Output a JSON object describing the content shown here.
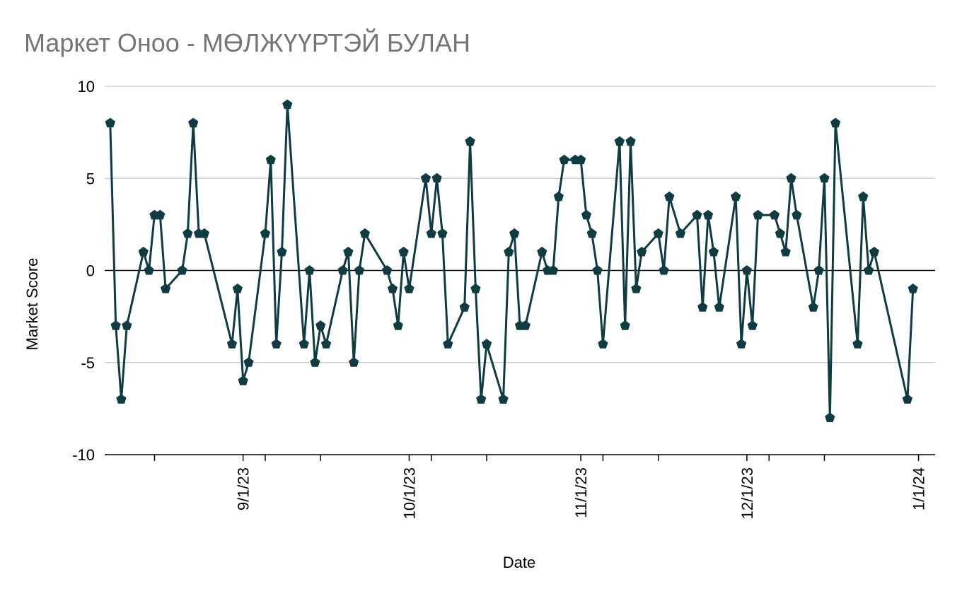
{
  "chart_data": {
    "type": "line",
    "title": "Маркет Оноо - МӨЛЖҮҮРТЭЙ БУЛАН",
    "xlabel": "Date",
    "ylabel": "Market Score",
    "ylim": [
      -10,
      10
    ],
    "yticks": [
      "10",
      "5",
      "0",
      "-5",
      "-10"
    ],
    "xlim": [
      "2023-08-07",
      "2024-01-04"
    ],
    "xticks": [
      {
        "label": "9/1/23",
        "date": "2023-09-01"
      },
      {
        "label": "10/1/23",
        "date": "2023-10-01"
      },
      {
        "label": "11/1/23",
        "date": "2023-11-01"
      },
      {
        "label": "12/1/23",
        "date": "2023-12-01"
      },
      {
        "label": "1/1/24",
        "date": "2024-01-01"
      }
    ],
    "grid": true,
    "legend": "none",
    "marker": "pentagon",
    "line_color": "#0f3b43",
    "series": [
      {
        "points": [
          [
            "2023-08-08",
            8
          ],
          [
            "2023-08-09",
            -3
          ],
          [
            "2023-08-10",
            -7
          ],
          [
            "2023-08-11",
            -3
          ],
          [
            "2023-08-14",
            1
          ],
          [
            "2023-08-15",
            0
          ],
          [
            "2023-08-16",
            3
          ],
          [
            "2023-08-17",
            3
          ],
          [
            "2023-08-18",
            -1
          ],
          [
            "2023-08-21",
            0
          ],
          [
            "2023-08-22",
            2
          ],
          [
            "2023-08-23",
            8
          ],
          [
            "2023-08-24",
            2
          ],
          [
            "2023-08-25",
            2
          ],
          [
            "2023-08-30",
            -4
          ],
          [
            "2023-08-31",
            -1
          ],
          [
            "2023-09-01",
            -6
          ],
          [
            "2023-09-02",
            -5
          ],
          [
            "2023-09-05",
            2
          ],
          [
            "2023-09-06",
            6
          ],
          [
            "2023-09-07",
            -4
          ],
          [
            "2023-09-08",
            1
          ],
          [
            "2023-09-09",
            9
          ],
          [
            "2023-09-12",
            -4
          ],
          [
            "2023-09-13",
            0
          ],
          [
            "2023-09-14",
            -5
          ],
          [
            "2023-09-15",
            -3
          ],
          [
            "2023-09-16",
            -4
          ],
          [
            "2023-09-19",
            0
          ],
          [
            "2023-09-20",
            1
          ],
          [
            "2023-09-21",
            -5
          ],
          [
            "2023-09-22",
            0
          ],
          [
            "2023-09-23",
            2
          ],
          [
            "2023-09-27",
            0
          ],
          [
            "2023-09-28",
            -1
          ],
          [
            "2023-09-29",
            -3
          ],
          [
            "2023-09-30",
            1
          ],
          [
            "2023-10-01",
            -1
          ],
          [
            "2023-10-04",
            5
          ],
          [
            "2023-10-05",
            2
          ],
          [
            "2023-10-06",
            5
          ],
          [
            "2023-10-07",
            2
          ],
          [
            "2023-10-08",
            -4
          ],
          [
            "2023-10-11",
            -2
          ],
          [
            "2023-10-12",
            7
          ],
          [
            "2023-10-13",
            -1
          ],
          [
            "2023-10-14",
            -7
          ],
          [
            "2023-10-15",
            -4
          ],
          [
            "2023-10-18",
            -7
          ],
          [
            "2023-10-19",
            1
          ],
          [
            "2023-10-20",
            2
          ],
          [
            "2023-10-21",
            -3
          ],
          [
            "2023-10-22",
            -3
          ],
          [
            "2023-10-25",
            1
          ],
          [
            "2023-10-26",
            0
          ],
          [
            "2023-10-27",
            0
          ],
          [
            "2023-10-28",
            4
          ],
          [
            "2023-10-29",
            6
          ],
          [
            "2023-10-31",
            6
          ],
          [
            "2023-11-01",
            6
          ],
          [
            "2023-11-02",
            3
          ],
          [
            "2023-11-03",
            2
          ],
          [
            "2023-11-04",
            0
          ],
          [
            "2023-11-05",
            -4
          ],
          [
            "2023-11-08",
            7
          ],
          [
            "2023-11-09",
            -3
          ],
          [
            "2023-11-10",
            7
          ],
          [
            "2023-11-11",
            -1
          ],
          [
            "2023-11-12",
            1
          ],
          [
            "2023-11-15",
            2
          ],
          [
            "2023-11-16",
            0
          ],
          [
            "2023-11-17",
            4
          ],
          [
            "2023-11-19",
            2
          ],
          [
            "2023-11-22",
            3
          ],
          [
            "2023-11-23",
            -2
          ],
          [
            "2023-11-24",
            3
          ],
          [
            "2023-11-25",
            1
          ],
          [
            "2023-11-26",
            -2
          ],
          [
            "2023-11-29",
            4
          ],
          [
            "2023-11-30",
            -4
          ],
          [
            "2023-12-01",
            0
          ],
          [
            "2023-12-02",
            -3
          ],
          [
            "2023-12-03",
            3
          ],
          [
            "2023-12-06",
            3
          ],
          [
            "2023-12-07",
            2
          ],
          [
            "2023-12-08",
            1
          ],
          [
            "2023-12-09",
            5
          ],
          [
            "2023-12-10",
            3
          ],
          [
            "2023-12-13",
            -2
          ],
          [
            "2023-12-14",
            0
          ],
          [
            "2023-12-15",
            5
          ],
          [
            "2023-12-16",
            -8
          ],
          [
            "2023-12-17",
            8
          ],
          [
            "2023-12-21",
            -4
          ],
          [
            "2023-12-22",
            4
          ],
          [
            "2023-12-23",
            0
          ],
          [
            "2023-12-24",
            1
          ],
          [
            "2023-12-30",
            -7
          ],
          [
            "2023-12-31",
            -1
          ]
        ]
      }
    ]
  }
}
